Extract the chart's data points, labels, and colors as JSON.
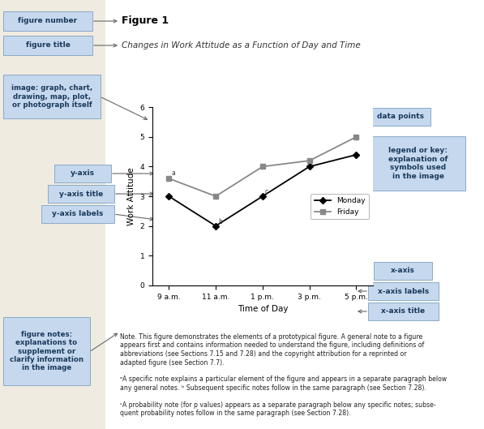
{
  "bg_color": "#f0ebe0",
  "white_panel_color": "#ffffff",
  "box_facecolor": "#c5d8ee",
  "box_edgecolor": "#8aaac8",
  "box_textcolor": "#1a3a5c",
  "figure_number": "Figure 1",
  "figure_title": "Changes in Work Attitude as a Function of Day and Time",
  "xlabel": "Time of Day",
  "ylabel": "Work Attitude",
  "xlabels": [
    "9 a.m.",
    "11 a.m.",
    "1 p.m.",
    "3 p.m.",
    "5 p.m."
  ],
  "ylim": [
    0,
    6
  ],
  "yticks": [
    0,
    1,
    2,
    3,
    4,
    5,
    6
  ],
  "monday_y": [
    3.0,
    2.0,
    3.0,
    4.0,
    4.4
  ],
  "friday_y": [
    3.6,
    3.0,
    4.0,
    4.2,
    5.0
  ],
  "monday_color": "#000000",
  "friday_color": "#888888",
  "note_line1": "Note. This figure demonstrates the elements of a prototypical figure. A general note to a figure",
  "note_line2": "appears first and contains information needed to understand the figure, including definitions of",
  "note_line3": "abbreviations (see Sections 7.15 and 7.28) and the copyright attribution for a reprinted or",
  "note_line4": "adapted figure (see Section 7.7).",
  "note_line5": "ᵃA specific note explains a particular element of the figure and appears in a separate paragraph below",
  "note_line6": "any general notes. ᵇ Subsequent specific notes follow in the same paragraph (see Section 7.28).",
  "note_line7": "ᶜA probability note (for p values) appears as a separate paragraph below any specific notes; subse-",
  "note_line8": "quent probability notes follow in the same paragraph (see Section 7.28)."
}
